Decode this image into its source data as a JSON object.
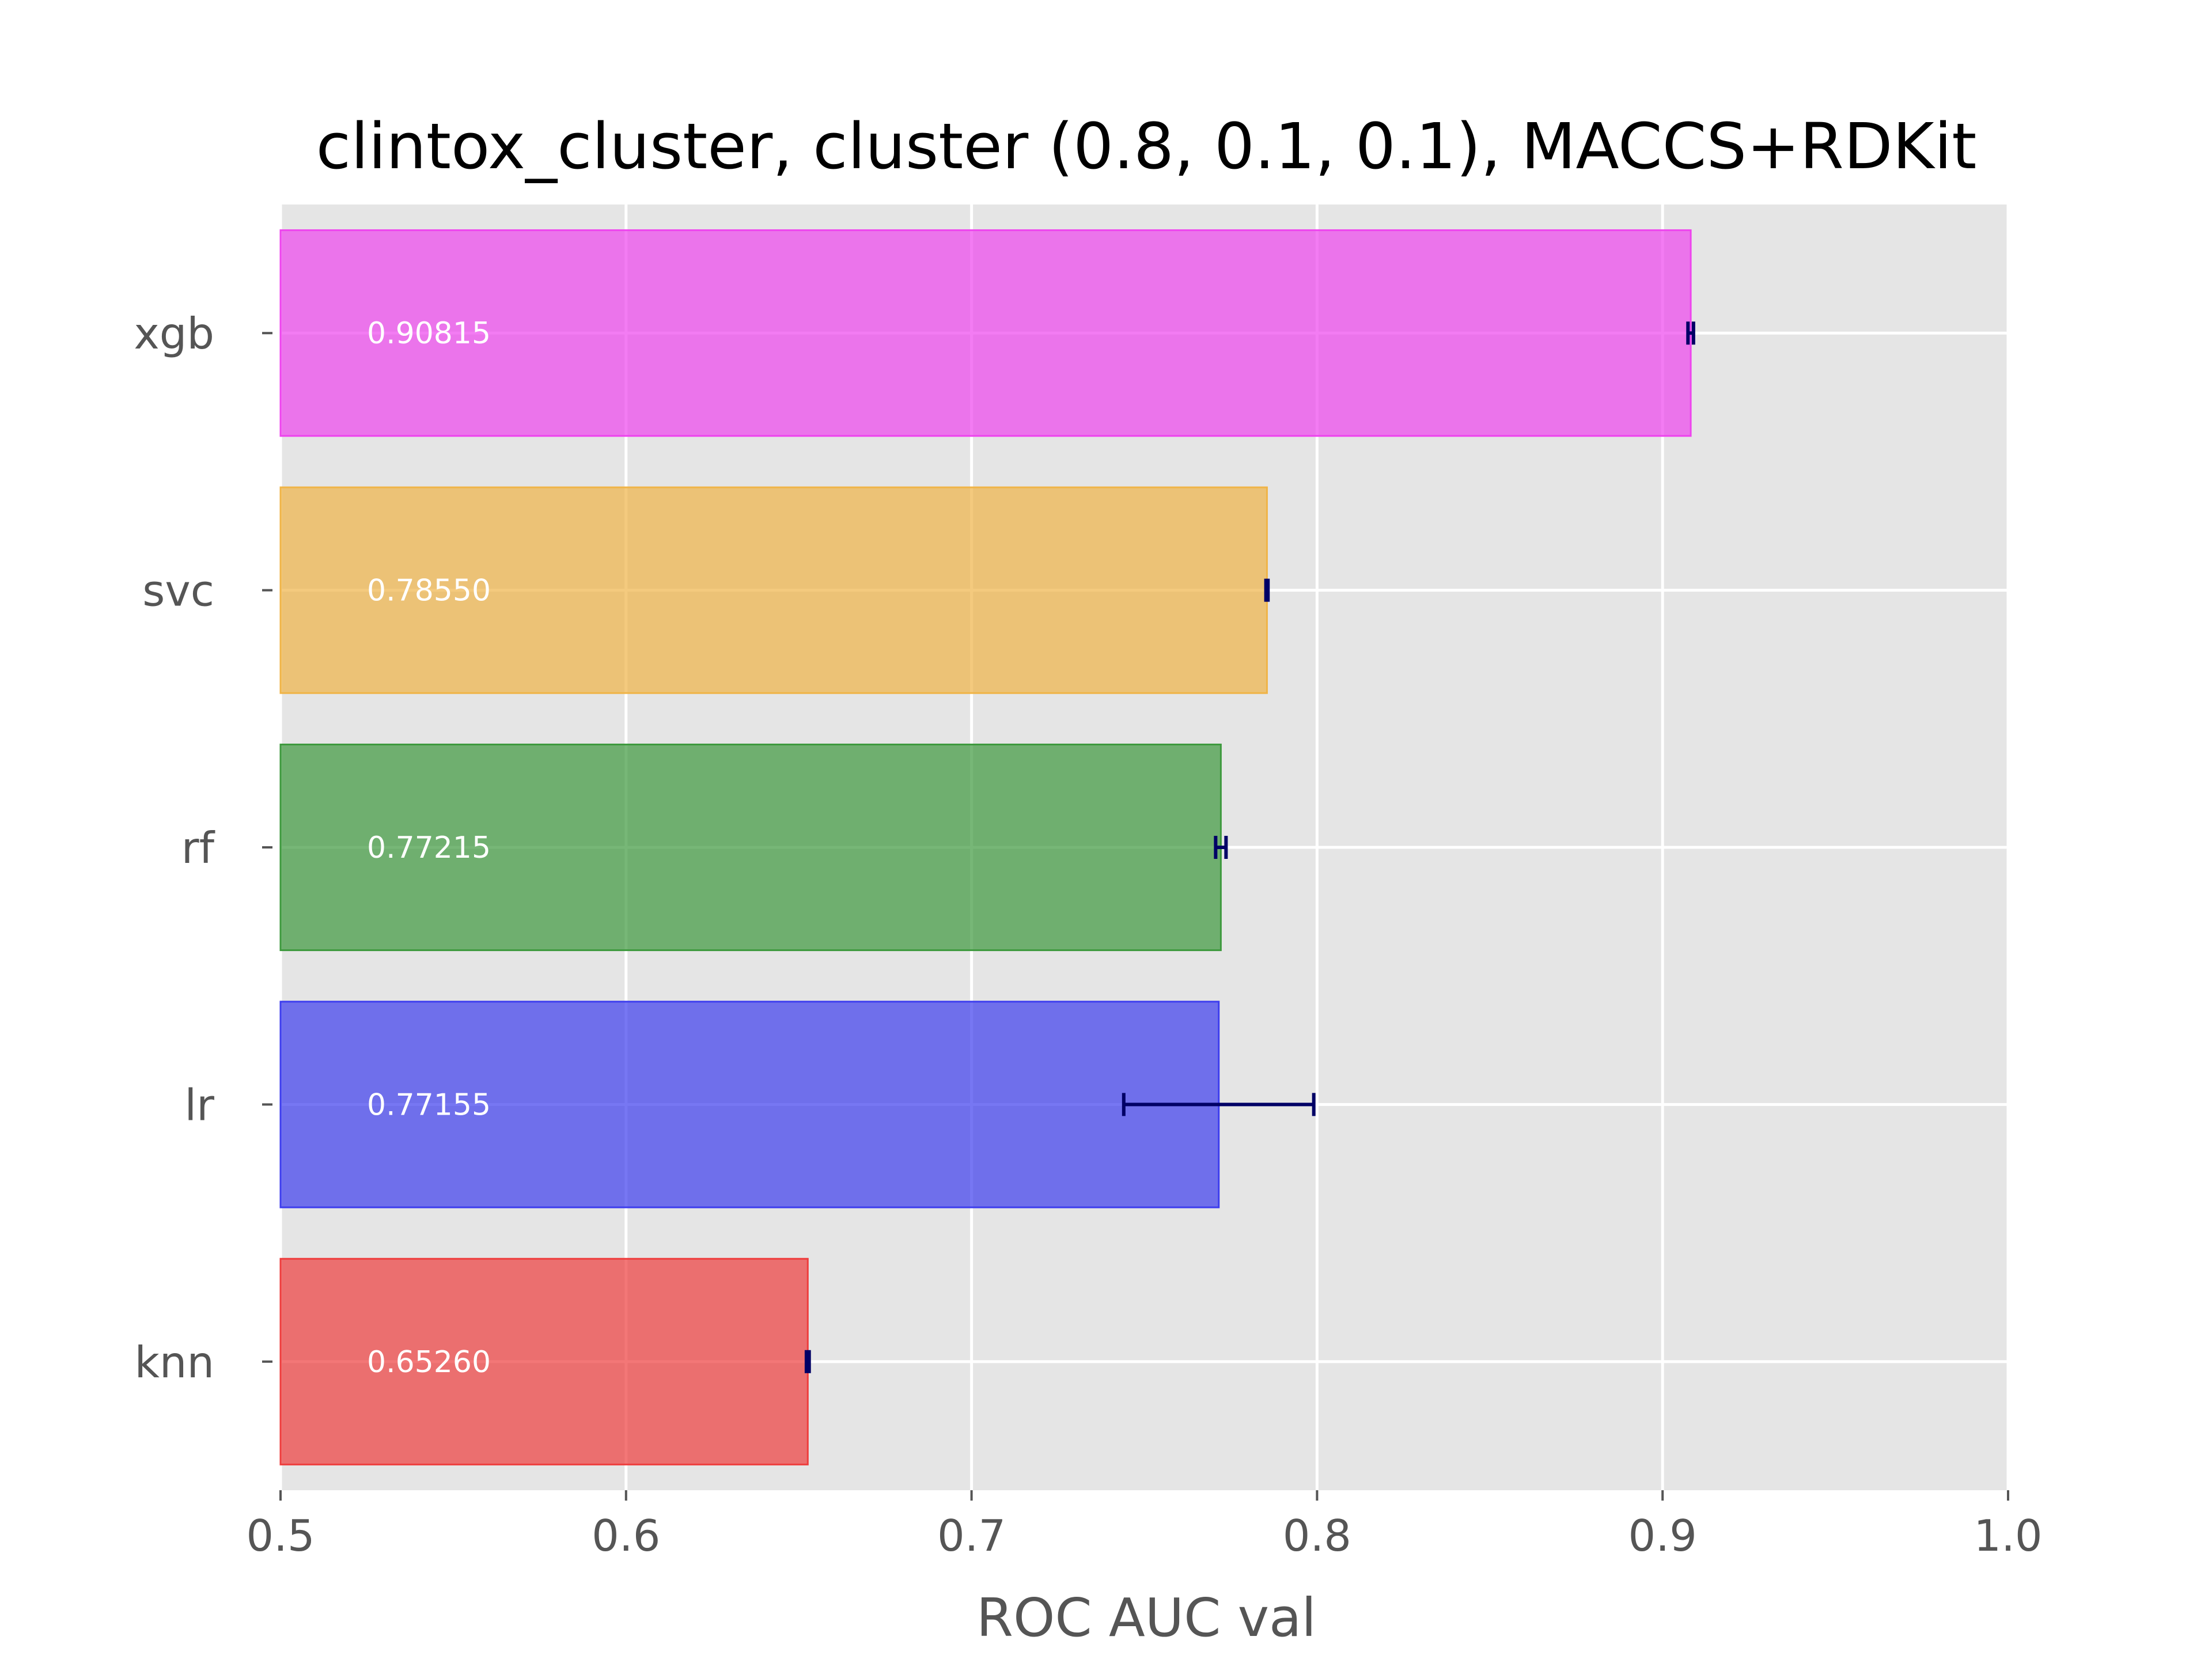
{
  "chart_data": {
    "type": "bar",
    "orientation": "horizontal",
    "title": "clintox_cluster, cluster (0.8, 0.1, 0.1), MACCS+RDKit",
    "xlabel": "ROC AUC val",
    "ylabel": "",
    "xlim": [
      0.5,
      1.0
    ],
    "xticks": [
      "0.5",
      "0.6",
      "0.7",
      "0.8",
      "0.9",
      "1.0"
    ],
    "grid": true,
    "categories": [
      "xgb",
      "svc",
      "rf",
      "lr",
      "knn"
    ],
    "values": [
      0.90815,
      0.7855,
      0.77215,
      0.77155,
      0.6526
    ],
    "value_labels": [
      "0.90815",
      "0.78550",
      "0.77215",
      "0.77155",
      "0.65260"
    ],
    "errors": [
      0.0008,
      0.0003,
      0.0015,
      0.0275,
      0.0004
    ],
    "colors": [
      "#ee44ee",
      "#f0b447",
      "#3d993d",
      "#3d3dee",
      "#ee3d3d"
    ],
    "error_color": "#000066",
    "background": "#e5e5e5"
  }
}
